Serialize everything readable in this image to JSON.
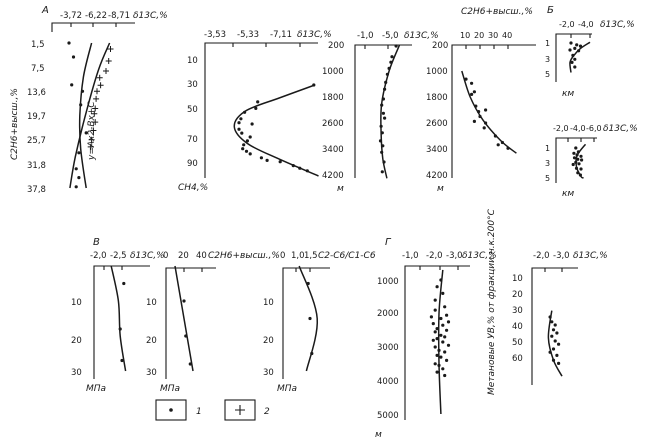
{
  "chart_data": [
    {
      "type": "scatter",
      "panel": "А",
      "x_tick_labels": [
        "-3,72",
        "-6,22",
        "-8,71"
      ],
      "x_unit": "δ13C,%",
      "y_tick_labels": [
        "1,5",
        "7,5",
        "13,6",
        "19,7",
        "25,7",
        "31,8",
        "37,8"
      ],
      "ylabel": "C2H6+высш.,%",
      "annotation": "у=Ах2-Вх+С",
      "series": [
        {
          "marker": "dot",
          "points": [
            [
              -3.5,
              1.5
            ],
            [
              -4.0,
              5
            ],
            [
              -3.8,
              12
            ],
            [
              -5.0,
              13.6
            ],
            [
              -4.8,
              17
            ],
            [
              -5.4,
              24
            ],
            [
              -4.6,
              29
            ],
            [
              -4.3,
              33
            ],
            [
              -4.6,
              35.2
            ],
            [
              -4.3,
              37.5
            ]
          ]
        },
        {
          "marker": "plus",
          "points": [
            [
              -8.1,
              3
            ],
            [
              -7.9,
              6
            ],
            [
              -7.6,
              8.5
            ],
            [
              -6.9,
              10.2
            ],
            [
              -7.0,
              12.1
            ],
            [
              -6.6,
              13.6
            ],
            [
              -6.5,
              15.5
            ],
            [
              -6.4,
              17.9
            ],
            [
              -6.3,
              19.2
            ],
            [
              -6.4,
              21.3
            ],
            [
              -6.2,
              23.4
            ],
            [
              -6.0,
              25.7
            ],
            [
              -5.9,
              27.5
            ]
          ]
        }
      ],
      "curves": [
        {
          "points": [
            [
              -6.0,
              1.5
            ],
            [
              -5.1,
              10
            ],
            [
              -4.7,
              19.7
            ],
            [
              -4.8,
              28
            ],
            [
              -5.4,
              37.8
            ]
          ]
        },
        {
          "points": [
            [
              -8.0,
              1.5
            ],
            [
              -6.8,
              8
            ],
            [
              -5.5,
              18
            ],
            [
              -4.2,
              30
            ],
            [
              -3.6,
              37.8
            ]
          ]
        }
      ]
    },
    {
      "type": "scatter",
      "x_tick_labels": [
        "-3,53",
        "-5,33",
        "-7,11"
      ],
      "x_unit": "δ13C,%",
      "y_tick_labels": [
        "10",
        "30",
        "50",
        "70",
        "90"
      ],
      "ylabel": "CH4,%",
      "points": [
        [
          -4.85,
          43
        ],
        [
          -4.75,
          48
        ],
        [
          -4.15,
          51
        ],
        [
          -3.95,
          56
        ],
        [
          -3.85,
          59
        ],
        [
          -4.55,
          60
        ],
        [
          -3.85,
          64
        ],
        [
          -4.0,
          67
        ],
        [
          -4.45,
          70
        ],
        [
          -4.3,
          73
        ],
        [
          -4.1,
          76
        ],
        [
          -4.05,
          79
        ],
        [
          -4.25,
          81
        ],
        [
          -4.45,
          83
        ],
        [
          -5.05,
          86
        ],
        [
          -5.35,
          88
        ],
        [
          -6.05,
          89
        ],
        [
          -6.75,
          92
        ],
        [
          -7.1,
          94
        ],
        [
          -7.5,
          96
        ],
        [
          -7.85,
          30
        ]
      ],
      "curve": [
        [
          -7.9,
          30
        ],
        [
          -6.0,
          40
        ],
        [
          -4.2,
          50
        ],
        [
          -3.6,
          62
        ],
        [
          -4.3,
          75
        ],
        [
          -6.0,
          87
        ],
        [
          -8.1,
          100
        ]
      ]
    },
    {
      "type": "scatter",
      "x_tick_labels": [
        "-1,0",
        "-5,0"
      ],
      "x_unit": "δ13C,%",
      "y_tick_labels": [
        "200",
        "1000",
        "1800",
        "2600",
        "3400",
        "4200"
      ],
      "ylabel": "м",
      "points": [
        [
          -6.4,
          230
        ],
        [
          -5.7,
          560
        ],
        [
          -5.5,
          730
        ],
        [
          -5.2,
          920
        ],
        [
          -4.9,
          1100
        ],
        [
          -4.6,
          1350
        ],
        [
          -4.4,
          1560
        ],
        [
          -4.2,
          1860
        ],
        [
          -3.9,
          2050
        ],
        [
          -4.2,
          2300
        ],
        [
          -4.4,
          2450
        ],
        [
          -3.8,
          2700
        ],
        [
          -4.0,
          2900
        ],
        [
          -3.7,
          3150
        ],
        [
          -4.1,
          3300
        ],
        [
          -3.9,
          3500
        ],
        [
          -4.3,
          3800
        ],
        [
          -4.0,
          4100
        ]
      ],
      "curve": [
        [
          -7.0,
          200
        ],
        [
          -5.2,
          1000
        ],
        [
          -3.9,
          2000
        ],
        [
          -3.8,
          2900
        ],
        [
          -4.1,
          3700
        ],
        [
          -4.8,
          4300
        ]
      ]
    },
    {
      "type": "scatter",
      "x_tick_labels": [
        "10",
        "20",
        "30",
        "40"
      ],
      "x_unit": "C2H6+высш.,%",
      "y_tick_labels": [
        "200",
        "1000",
        "1800",
        "2600",
        "3400",
        "4200"
      ],
      "ylabel": "м",
      "points": [
        [
          10,
          1250
        ],
        [
          14,
          1380
        ],
        [
          16,
          1640
        ],
        [
          14,
          1720
        ],
        [
          17,
          2080
        ],
        [
          24,
          2200
        ],
        [
          19,
          2250
        ],
        [
          20,
          2400
        ],
        [
          16,
          2550
        ],
        [
          24,
          2600
        ],
        [
          23,
          2750
        ],
        [
          31,
          3000
        ],
        [
          36,
          3200
        ],
        [
          33,
          3270
        ],
        [
          40,
          3380
        ]
      ],
      "curve": [
        [
          7,
          1000
        ],
        [
          13,
          1800
        ],
        [
          22,
          2500
        ],
        [
          35,
          3150
        ],
        [
          46,
          3530
        ]
      ]
    },
    {
      "type": "scatter",
      "panel": "Б",
      "x_tick_labels": [
        "-2,0",
        "-4,0"
      ],
      "x_unit": "δ13C,%",
      "y_tick_labels": [
        "1",
        "3",
        "5"
      ],
      "ylabel": "км",
      "points": [
        [
          -2.0,
          1.0
        ],
        [
          -2.6,
          1.25
        ],
        [
          -3.0,
          1.4
        ],
        [
          -2.4,
          1.7
        ],
        [
          -1.9,
          1.9
        ],
        [
          -2.8,
          2.0
        ],
        [
          -2.2,
          2.6
        ],
        [
          -2.4,
          3.1
        ],
        [
          -2.1,
          3.5
        ],
        [
          -2.4,
          4.1
        ]
      ],
      "curve": [
        [
          -4.0,
          0.9
        ],
        [
          -3.0,
          1.7
        ],
        [
          -2.3,
          2.6
        ],
        [
          -1.9,
          3.5
        ],
        [
          -2.0,
          4.8
        ]
      ]
    },
    {
      "type": "scatter",
      "x_tick_labels": [
        "-2,0",
        "-4,0",
        "-6,0"
      ],
      "x_unit": "δ13C,%",
      "y_tick_labels": [
        "1",
        "3",
        "5"
      ],
      "ylabel": "км",
      "points": [
        [
          -3.2,
          1.0
        ],
        [
          -3.6,
          1.5
        ],
        [
          -2.9,
          1.7
        ],
        [
          -3.4,
          1.9
        ],
        [
          -4.0,
          2.1
        ],
        [
          -3.0,
          2.3
        ],
        [
          -3.5,
          2.5
        ],
        [
          -4.1,
          2.6
        ],
        [
          -3.2,
          2.9
        ],
        [
          -3.7,
          3.1
        ],
        [
          -2.8,
          3.2
        ],
        [
          -3.3,
          3.7
        ],
        [
          -4.0,
          3.8
        ],
        [
          -3.5,
          4.3
        ],
        [
          -3.9,
          4.6
        ]
      ],
      "curve": [
        [
          -4.7,
          0.5
        ],
        [
          -3.4,
          2.0
        ],
        [
          -3.3,
          3.5
        ],
        [
          -4.0,
          4.8
        ],
        [
          -4.4,
          5.0
        ]
      ]
    },
    {
      "type": "scatter",
      "panel": "В",
      "x_tick_labels": [
        "-2,0",
        "-2,5"
      ],
      "x_unit": "δ13C,%",
      "y_tick_labels": [
        "10",
        "20",
        "30"
      ],
      "ylabel": "МПа",
      "points": [
        [
          -2.55,
          5
        ],
        [
          -2.45,
          18
        ],
        [
          -2.5,
          27
        ]
      ],
      "curve": [
        [
          -2.2,
          0
        ],
        [
          -2.4,
          10
        ],
        [
          -2.45,
          20
        ],
        [
          -2.6,
          30
        ]
      ]
    },
    {
      "type": "scatter",
      "x_tick_labels": [
        "0",
        "20",
        "40"
      ],
      "x_unit": "C2H6+высш.,%",
      "y_tick_labels": [
        "10",
        "20",
        "30"
      ],
      "ylabel": "МПа",
      "points": [
        [
          20,
          10
        ],
        [
          22,
          20
        ],
        [
          27,
          28
        ]
      ],
      "curve": [
        [
          10,
          0
        ],
        [
          18,
          12
        ],
        [
          30,
          30
        ]
      ]
    },
    {
      "type": "scatter",
      "x_tick_labels": [
        "0",
        "1,0",
        "1,5"
      ],
      "x_unit": "C2-C6/C1-C6",
      "y_tick_labels": [
        "10",
        "20",
        "30"
      ],
      "ylabel": "МПа",
      "points": [
        [
          1.4,
          5
        ],
        [
          1.5,
          15
        ],
        [
          1.6,
          25
        ]
      ],
      "curve": [
        [
          0.9,
          0
        ],
        [
          1.9,
          15
        ],
        [
          1.3,
          30
        ]
      ]
    },
    {
      "type": "scatter",
      "panel": "Г",
      "x_tick_labels": [
        "-1,0",
        "-2,0",
        "-3,0"
      ],
      "x_unit": "δ13C,%",
      "y_tick_labels": [
        "1000",
        "2000",
        "3000",
        "4000",
        "5000"
      ],
      "ylabel": "м",
      "points": [
        [
          -2.1,
          1000
        ],
        [
          -1.9,
          1200
        ],
        [
          -2.2,
          1400
        ],
        [
          -1.8,
          1600
        ],
        [
          -2.3,
          1800
        ],
        [
          -1.8,
          1900
        ],
        [
          -2.4,
          2050
        ],
        [
          -1.6,
          2100
        ],
        [
          -2.1,
          2150
        ],
        [
          -2.5,
          2250
        ],
        [
          -1.7,
          2300
        ],
        [
          -2.2,
          2350
        ],
        [
          -1.9,
          2450
        ],
        [
          -2.4,
          2500
        ],
        [
          -1.8,
          2550
        ],
        [
          -2.1,
          2650
        ],
        [
          -2.3,
          2700
        ],
        [
          -1.9,
          2750
        ],
        [
          -1.7,
          2800
        ],
        [
          -2.2,
          2850
        ],
        [
          -2.5,
          2950
        ],
        [
          -1.8,
          3000
        ],
        [
          -2.0,
          3100
        ],
        [
          -2.3,
          3150
        ],
        [
          -1.9,
          3250
        ],
        [
          -2.1,
          3300
        ],
        [
          -2.4,
          3400
        ],
        [
          -1.8,
          3500
        ],
        [
          -2.0,
          3550
        ],
        [
          -2.2,
          3650
        ],
        [
          -1.9,
          3750
        ],
        [
          -2.3,
          3850
        ]
      ],
      "curve": [
        [
          -2.2,
          700
        ],
        [
          -2.0,
          2000
        ],
        [
          -2.0,
          3500
        ],
        [
          -2.1,
          5000
        ]
      ]
    },
    {
      "type": "scatter",
      "x_tick_labels": [
        "-2,0",
        "-3,0"
      ],
      "x_unit": "δ13C,%",
      "y_tick_labels": [
        "10",
        "20",
        "30",
        "40",
        "50",
        "60"
      ],
      "ylabel": "Метановые УВ,% от фракции н.к.200°С",
      "points": [
        [
          -2.3,
          35
        ],
        [
          -2.4,
          38
        ],
        [
          -2.6,
          40
        ],
        [
          -2.5,
          43
        ],
        [
          -2.7,
          45
        ],
        [
          -2.4,
          47
        ],
        [
          -2.6,
          50
        ],
        [
          -2.8,
          52
        ],
        [
          -2.5,
          55
        ],
        [
          -2.3,
          57
        ],
        [
          -2.7,
          59
        ],
        [
          -2.5,
          62
        ],
        [
          -2.8,
          64
        ]
      ],
      "curve": [
        [
          -2.4,
          31
        ],
        [
          -2.2,
          48
        ],
        [
          -2.5,
          62
        ],
        [
          -3.0,
          72
        ]
      ]
    }
  ],
  "legend": [
    {
      "marker": "dot",
      "label": "1"
    },
    {
      "marker": "plus",
      "label": "2"
    }
  ]
}
